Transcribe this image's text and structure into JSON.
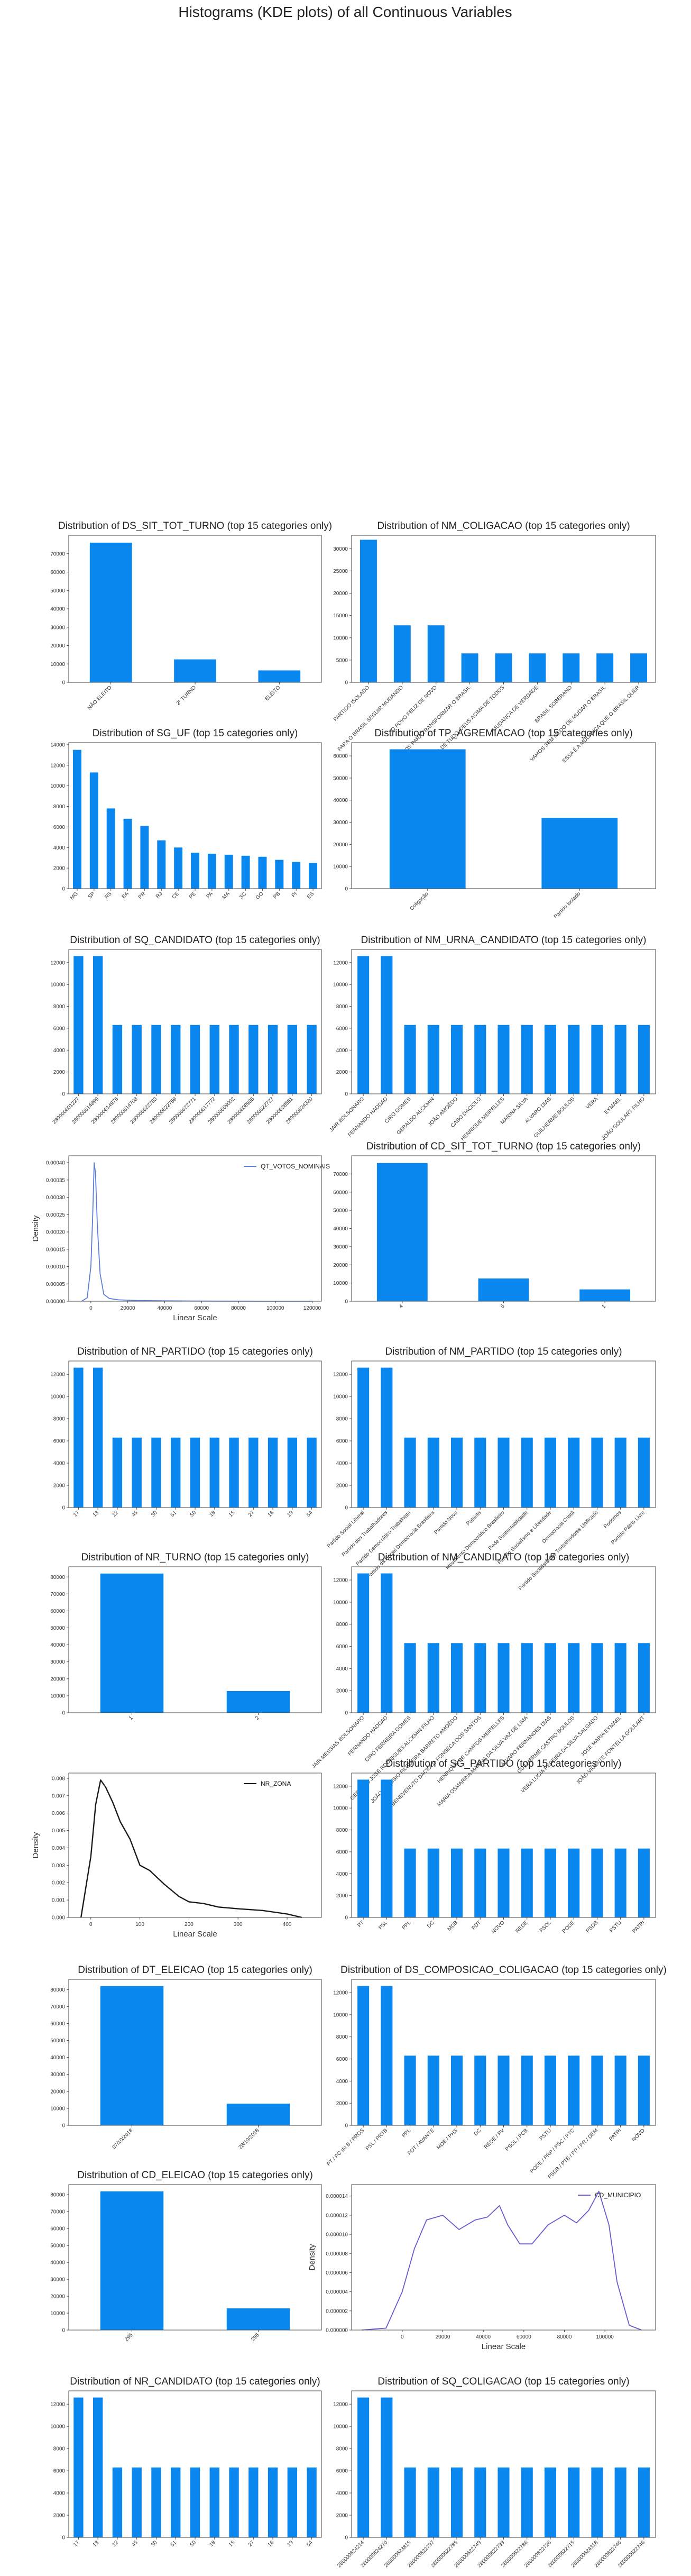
{
  "figure_title": "Histograms (KDE plots) of all Continuous Variables",
  "colors": {
    "bar": "#0a87ee",
    "kde_votos": "#5b7fd4",
    "kde_zona": "#1a1a1a",
    "kde_municipio": "#6a5acd",
    "frame": "#444444"
  },
  "chart_data": [
    {
      "type": "bar",
      "title": "Distribution of DS_SIT_TOT_TURNO (top 15 categories only)",
      "categories": [
        "NÃO ELEITO",
        "2º TURNO",
        "ELEITO"
      ],
      "values": [
        76000,
        12500,
        6500
      ],
      "yticks": [
        0,
        10000,
        20000,
        30000,
        40000,
        50000,
        60000,
        70000
      ],
      "ylim": [
        0,
        80000
      ]
    },
    {
      "type": "bar",
      "title": "Distribution of NM_COLIGACAO (top 15 categories only)",
      "categories": [
        "PARTIDO ISOLADO",
        "PARA O BRASIL SEGUIR MUDANDO",
        "O POVO FELIZ DE NOVO",
        "UNIDOS PARA TRANSFORMAR O BRASIL",
        "BRASIL ACIMA DE TUDO, DEUS ACIMA DE TODOS",
        "MUDANÇA DE VERDADE",
        "BRASIL SOBERANO",
        "VAMOS SEM MEDO DE MUDAR O BRASIL",
        "ESSA É A MUDANÇA QUE O BRASIL QUER"
      ],
      "values": [
        32000,
        12800,
        12800,
        6500,
        6500,
        6500,
        6500,
        6500,
        6500
      ],
      "yticks": [
        0,
        5000,
        10000,
        15000,
        20000,
        25000,
        30000
      ],
      "ylim": [
        0,
        33000
      ]
    },
    {
      "type": "bar",
      "title": "Distribution of SG_UF (top 15 categories only)",
      "categories": [
        "MG",
        "SP",
        "RS",
        "BA",
        "PR",
        "RJ",
        "CE",
        "PE",
        "PA",
        "MA",
        "SC",
        "GO",
        "PB",
        "PI",
        "ES"
      ],
      "values": [
        13500,
        11300,
        7800,
        6800,
        6100,
        4700,
        4000,
        3500,
        3400,
        3300,
        3200,
        3100,
        2800,
        2600,
        2500
      ],
      "yticks": [
        0,
        2000,
        4000,
        6000,
        8000,
        10000,
        12000,
        14000
      ],
      "ylim": [
        0,
        14200
      ]
    },
    {
      "type": "bar",
      "title": "Distribution of TP_AGREMIACAO (top 15 categories only)",
      "categories": [
        "Coligação",
        "Partido isolado"
      ],
      "values": [
        63000,
        32000
      ],
      "yticks": [
        0,
        10000,
        20000,
        30000,
        40000,
        50000,
        60000
      ],
      "ylim": [
        0,
        66000
      ]
    },
    {
      "type": "bar",
      "title": "Distribution of SQ_CANDIDATO (top 15 categories only)",
      "categories": [
        "280000601227",
        "280000614899",
        "280000614976",
        "280000614708",
        "280000622783",
        "280000622759",
        "280000622771",
        "280000617772",
        "280000609002",
        "280000608985",
        "280000622727",
        "280000628551",
        "280000624320"
      ],
      "values": [
        12600,
        12600,
        6300,
        6300,
        6300,
        6300,
        6300,
        6300,
        6300,
        6300,
        6300,
        6300,
        6300
      ],
      "yticks": [
        0,
        2000,
        4000,
        6000,
        8000,
        10000,
        12000
      ],
      "ylim": [
        0,
        13200
      ]
    },
    {
      "type": "bar",
      "title": "Distribution of NM_URNA_CANDIDATO (top 15 categories only)",
      "categories": [
        "JAIR BOLSONARO",
        "FERNANDO HADDAD",
        "CIRO GOMES",
        "GERALDO ALCKMIN",
        "JOÃO AMOÊDO",
        "CABO DACIOLO",
        "HENRIQUE MEIRELLES",
        "MARINA SILVA",
        "ALVARO DIAS",
        "GUILHERME BOULOS",
        "VERA",
        "EYMAEL",
        "JOÃO GOULART FILHO"
      ],
      "values": [
        12600,
        12600,
        6300,
        6300,
        6300,
        6300,
        6300,
        6300,
        6300,
        6300,
        6300,
        6300,
        6300
      ],
      "yticks": [
        0,
        2000,
        4000,
        6000,
        8000,
        10000,
        12000
      ],
      "ylim": [
        0,
        13200
      ]
    },
    {
      "type": "line",
      "title": "",
      "series_name": "QT_VOTOS_NOMINAIS",
      "xlabel": "Linear Scale",
      "ylabel": "Density",
      "x": [
        -5000,
        -2000,
        0,
        1000,
        1800,
        2500,
        3500,
        5000,
        7000,
        10000,
        15000,
        25000,
        40000,
        60000,
        80000,
        100000,
        120000
      ],
      "y": [
        0,
        1e-05,
        0.0001,
        0.00025,
        0.0004,
        0.00037,
        0.00022,
        8e-05,
        2e-05,
        8e-06,
        4e-06,
        2e-06,
        1e-06,
        5e-07,
        3e-07,
        2e-07,
        1e-07
      ],
      "xticks": [
        0,
        20000,
        40000,
        60000,
        80000,
        100000,
        120000
      ],
      "yticks": [
        0,
        5e-05,
        0.0001,
        0.00015,
        0.0002,
        0.00025,
        0.0003,
        0.00035,
        0.0004
      ],
      "ytick_labels": [
        "0.00000",
        "0.00005",
        "0.00010",
        "0.00015",
        "0.00020",
        "0.00025",
        "0.00030",
        "0.00035",
        "0.00040"
      ],
      "xlim": [
        -12000,
        125000
      ],
      "ylim": [
        0,
        0.00042
      ]
    },
    {
      "type": "bar",
      "title": "Distribution of CD_SIT_TOT_TURNO (top 15 categories only)",
      "categories": [
        "4",
        "6",
        "1"
      ],
      "values": [
        76000,
        12500,
        6500
      ],
      "yticks": [
        0,
        10000,
        20000,
        30000,
        40000,
        50000,
        60000,
        70000
      ],
      "ylim": [
        0,
        80000
      ]
    },
    {
      "type": "bar",
      "title": "Distribution of NR_PARTIDO (top 15 categories only)",
      "categories": [
        "17",
        "13",
        "12",
        "45",
        "30",
        "51",
        "50",
        "18",
        "15",
        "27",
        "16",
        "19",
        "54"
      ],
      "values": [
        12600,
        12600,
        6300,
        6300,
        6300,
        6300,
        6300,
        6300,
        6300,
        6300,
        6300,
        6300,
        6300
      ],
      "yticks": [
        0,
        2000,
        4000,
        6000,
        8000,
        10000,
        12000
      ],
      "ylim": [
        0,
        13200
      ]
    },
    {
      "type": "bar",
      "title": "Distribution of NM_PARTIDO (top 15 categories only)",
      "categories": [
        "Partido Social Liberal",
        "Partido dos Trabalhadores",
        "Partido Democrático Trabalhista",
        "Partido da Social Democracia Brasileira",
        "Partido Novo",
        "Patriota",
        "Movimento Democrático Brasileiro",
        "Rede Sustentabilidade",
        "Partido Socialismo e Liberdade",
        "Democracia Cristã",
        "Partido Socialista dos Trabalhadores Unificado",
        "Podemos",
        "Partido Pátria Livre"
      ],
      "values": [
        12600,
        12600,
        6300,
        6300,
        6300,
        6300,
        6300,
        6300,
        6300,
        6300,
        6300,
        6300,
        6300
      ],
      "yticks": [
        0,
        2000,
        4000,
        6000,
        8000,
        10000,
        12000
      ],
      "ylim": [
        0,
        13200
      ]
    },
    {
      "type": "bar",
      "title": "Distribution of NR_TURNO (top 15 categories only)",
      "categories": [
        "1",
        "2"
      ],
      "values": [
        82000,
        12800
      ],
      "yticks": [
        0,
        10000,
        20000,
        30000,
        40000,
        50000,
        60000,
        70000,
        80000
      ],
      "ylim": [
        0,
        86000
      ]
    },
    {
      "type": "bar",
      "title": "Distribution of NM_CANDIDATO (top 15 categories only)",
      "categories": [
        "JAIR MESSIAS BOLSONARO",
        "FERNANDO HADDAD",
        "CIRO FERREIRA GOMES",
        "GERALDO JOSÉ RODRIGUES ALCKMIN FILHO",
        "JOÃO DIONISIO FILGUEIRA BARRETO AMOÊDO",
        "BENEVENUTO DACIOLO FONSECA DOS SANTOS",
        "HENRIQUE DE CAMPOS MEIRELLES",
        "MARIA OSMARINA MARINA DA SILVA VAZ DE LIMA",
        "ALVARO FERNANDES DIAS",
        "GUILHERME CASTRO BOULOS",
        "VERA LUCIA PEREIRA DA SILVA SALGADO",
        "JOSE MARIA EYMAEL",
        "JOÃO VICENTE FONTELLA GOULART"
      ],
      "values": [
        12600,
        12600,
        6300,
        6300,
        6300,
        6300,
        6300,
        6300,
        6300,
        6300,
        6300,
        6300,
        6300
      ],
      "yticks": [
        0,
        2000,
        4000,
        6000,
        8000,
        10000,
        12000
      ],
      "ylim": [
        0,
        13200
      ]
    },
    {
      "type": "line",
      "title": "",
      "series_name": "NR_ZONA",
      "xlabel": "Linear Scale",
      "ylabel": "Density",
      "x": [
        -20,
        0,
        10,
        20,
        30,
        45,
        60,
        80,
        100,
        120,
        150,
        180,
        200,
        230,
        260,
        300,
        350,
        400,
        430
      ],
      "y": [
        0,
        0.0035,
        0.0065,
        0.0079,
        0.0075,
        0.0066,
        0.0055,
        0.0045,
        0.003,
        0.0027,
        0.0019,
        0.0012,
        0.0009,
        0.0008,
        0.0006,
        0.0005,
        0.0004,
        0.0002,
        0
      ],
      "xticks": [
        0,
        100,
        200,
        300,
        400
      ],
      "yticks": [
        0,
        0.001,
        0.002,
        0.003,
        0.004,
        0.005,
        0.006,
        0.007,
        0.008
      ],
      "ytick_labels": [
        "0.000",
        "0.001",
        "0.002",
        "0.003",
        "0.004",
        "0.005",
        "0.006",
        "0.007",
        "0.008"
      ],
      "xlim": [
        -45,
        470
      ],
      "ylim": [
        0,
        0.0083
      ]
    },
    {
      "type": "bar",
      "title": "Distribution of SG_PARTIDO (top 15 categories only)",
      "categories": [
        "PT",
        "PSL",
        "PPL",
        "DC",
        "MDB",
        "PDT",
        "NOVO",
        "REDE",
        "PSOL",
        "PODE",
        "PSDB",
        "PSTU",
        "PATRI"
      ],
      "values": [
        12600,
        12600,
        6300,
        6300,
        6300,
        6300,
        6300,
        6300,
        6300,
        6300,
        6300,
        6300,
        6300
      ],
      "yticks": [
        0,
        2000,
        4000,
        6000,
        8000,
        10000,
        12000
      ],
      "ylim": [
        0,
        13200
      ]
    },
    {
      "type": "bar",
      "title": "Distribution of DT_ELEICAO (top 15 categories only)",
      "categories": [
        "07/10/2018",
        "28/10/2018"
      ],
      "values": [
        82000,
        12800
      ],
      "yticks": [
        0,
        10000,
        20000,
        30000,
        40000,
        50000,
        60000,
        70000,
        80000
      ],
      "ylim": [
        0,
        86000
      ]
    },
    {
      "type": "bar",
      "title": "Distribution of DS_COMPOSICAO_COLIGACAO (top 15 categories only)",
      "categories": [
        "PT / PC do B / PROS",
        "PSL / PRTB",
        "PPL",
        "PDT / AVANTE",
        "MDB / PHS",
        "DC",
        "REDE / PV",
        "PSOL / PCB",
        "PSTU",
        "PODE / PRP / PSC / PTC",
        "PSDB / PTB / PP / PR / DEM",
        "PATRI",
        "NOVO"
      ],
      "values": [
        12600,
        12600,
        6300,
        6300,
        6300,
        6300,
        6300,
        6300,
        6300,
        6300,
        6300,
        6300,
        6300
      ],
      "yticks": [
        0,
        2000,
        4000,
        6000,
        8000,
        10000,
        12000
      ],
      "ylim": [
        0,
        13200
      ]
    },
    {
      "type": "bar",
      "title": "Distribution of CD_ELEICAO (top 15 categories only)",
      "categories": [
        "295",
        "296"
      ],
      "values": [
        82000,
        12800
      ],
      "yticks": [
        0,
        10000,
        20000,
        30000,
        40000,
        50000,
        60000,
        70000,
        80000
      ],
      "ylim": [
        0,
        86000
      ]
    },
    {
      "type": "line",
      "title": "",
      "series_name": "CD_MUNICIPIO",
      "xlabel": "Linear Scale",
      "ylabel": "Density",
      "x": [
        -20000,
        -8000,
        0,
        6000,
        12000,
        20000,
        28000,
        36000,
        42000,
        48000,
        52000,
        58000,
        64000,
        72000,
        80000,
        86000,
        92000,
        97000,
        102000,
        106000,
        112000,
        118000
      ],
      "y": [
        0,
        2e-07,
        4e-06,
        8.5e-06,
        1.15e-05,
        1.2e-05,
        1.05e-05,
        1.15e-05,
        1.18e-05,
        1.3e-05,
        1.1e-05,
        9e-06,
        9e-06,
        1.1e-05,
        1.2e-05,
        1.12e-05,
        1.25e-05,
        1.45e-05,
        1.1e-05,
        5e-06,
        5e-07,
        0
      ],
      "xticks": [
        0,
        20000,
        40000,
        60000,
        80000,
        100000
      ],
      "yticks": [
        0,
        2e-06,
        4e-06,
        6e-06,
        8e-06,
        1e-05,
        1.2e-05,
        1.4e-05
      ],
      "ytick_labels": [
        "0.000000",
        "0.000002",
        "0.000004",
        "0.000006",
        "0.000008",
        "0.000010",
        "0.000012",
        "0.000014"
      ],
      "xlim": [
        -25000,
        125000
      ],
      "ylim": [
        0,
        1.52e-05
      ]
    },
    {
      "type": "bar",
      "title": "Distribution of NR_CANDIDATO (top 15 categories only)",
      "categories": [
        "17",
        "13",
        "12",
        "45",
        "30",
        "51",
        "50",
        "18",
        "15",
        "27",
        "16",
        "19",
        "54"
      ],
      "values": [
        12600,
        12600,
        6300,
        6300,
        6300,
        6300,
        6300,
        6300,
        6300,
        6300,
        6300,
        6300,
        6300
      ],
      "yticks": [
        0,
        2000,
        4000,
        6000,
        8000,
        10000,
        12000
      ],
      "ylim": [
        0,
        13200
      ]
    },
    {
      "type": "bar",
      "title": "Distribution of SQ_COLIGACAO (top 15 categories only)",
      "categories": [
        "280000624214",
        "280000624270",
        "280000623815",
        "280000622797",
        "280000622785",
        "280000622749",
        "280000622799",
        "280000622786",
        "280000622726",
        "280000622715",
        "280000624318",
        "280000622746",
        "280000622746"
      ],
      "values": [
        12600,
        12600,
        6300,
        6300,
        6300,
        6300,
        6300,
        6300,
        6300,
        6300,
        6300,
        6300,
        6300
      ],
      "yticks": [
        0,
        2000,
        4000,
        6000,
        8000,
        10000,
        12000
      ],
      "ylim": [
        0,
        13200
      ]
    }
  ]
}
